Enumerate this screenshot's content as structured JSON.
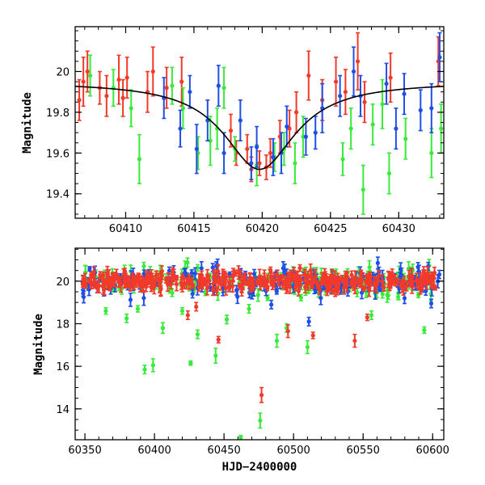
{
  "colors": {
    "red": "#f23a2a",
    "green": "#3aea3a",
    "blue": "#1f4fe6",
    "model": "#000000"
  },
  "chart_data": [
    {
      "type": "scatter",
      "title": "",
      "xlabel": "",
      "ylabel": "Magnitude",
      "xlim": [
        60406.3,
        60433.3
      ],
      "ylim": [
        20.22,
        19.28
      ],
      "inverted_y": true,
      "xticks": [
        60410,
        60415,
        60420,
        60425,
        60430
      ],
      "yticks": [
        19.4,
        19.6,
        19.8,
        20
      ],
      "ytick_labels": [
        "19.4",
        "19.6",
        "19.8",
        "20"
      ],
      "model_curve": {
        "type": "lorentzian-like peak",
        "baseline": 19.95,
        "peak_mag": 19.52,
        "peak_x": 60419.8,
        "half_width_days": 3.2
      },
      "series": [
        {
          "color": "red",
          "points": [
            [
              60406.6,
              19.86,
              0.1
            ],
            [
              60406.9,
              19.95,
              0.12
            ],
            [
              60407.2,
              20.0,
              0.1
            ],
            [
              60408.1,
              19.92,
              0.08
            ],
            [
              60408.6,
              19.88,
              0.1
            ],
            [
              60409.5,
              19.96,
              0.12
            ],
            [
              60409.8,
              19.87,
              0.09
            ],
            [
              60410.1,
              19.97,
              0.1
            ],
            [
              60411.6,
              19.9,
              0.1
            ],
            [
              60412.0,
              20.0,
              0.12
            ],
            [
              60413.0,
              19.92,
              0.1
            ],
            [
              60414.1,
              19.95,
              0.12
            ],
            [
              60417.7,
              19.71,
              0.08
            ],
            [
              60418.1,
              19.6,
              0.06
            ],
            [
              60418.9,
              19.62,
              0.07
            ],
            [
              60419.2,
              19.52,
              0.06
            ],
            [
              60419.8,
              19.55,
              0.06
            ],
            [
              60420.3,
              19.53,
              0.06
            ],
            [
              60420.6,
              19.6,
              0.07
            ],
            [
              60421.3,
              19.68,
              0.08
            ],
            [
              60422.0,
              19.72,
              0.09
            ],
            [
              60422.5,
              19.8,
              0.1
            ],
            [
              60423.4,
              19.98,
              0.12
            ],
            [
              60424.4,
              19.86,
              0.1
            ],
            [
              60425.4,
              19.95,
              0.12
            ],
            [
              60426.1,
              19.9,
              0.11
            ],
            [
              60427.0,
              20.05,
              0.14
            ],
            [
              60427.5,
              19.85,
              0.1
            ],
            [
              60429.4,
              19.97,
              0.12
            ],
            [
              60432.9,
              20.05,
              0.12
            ]
          ]
        },
        {
          "color": "green",
          "points": [
            [
              60407.4,
              19.98,
              0.1
            ],
            [
              60409.1,
              19.92,
              0.09
            ],
            [
              60410.4,
              19.82,
              0.09
            ],
            [
              60411.0,
              19.57,
              0.12
            ],
            [
              60413.4,
              19.93,
              0.09
            ],
            [
              60414.2,
              19.82,
              0.1
            ],
            [
              60415.3,
              19.6,
              0.08
            ],
            [
              60416.2,
              19.66,
              0.12
            ],
            [
              60416.7,
              19.72,
              0.1
            ],
            [
              60417.2,
              19.92,
              0.1
            ],
            [
              60418.0,
              19.62,
              0.06
            ],
            [
              60419.6,
              19.54,
              0.1
            ],
            [
              60420.9,
              19.58,
              0.07
            ],
            [
              60421.6,
              19.62,
              0.08
            ],
            [
              60422.4,
              19.55,
              0.1
            ],
            [
              60423.0,
              19.68,
              0.1
            ],
            [
              60425.9,
              19.57,
              0.08
            ],
            [
              60426.5,
              19.72,
              0.1
            ],
            [
              60427.4,
              19.42,
              0.12
            ],
            [
              60428.1,
              19.74,
              0.1
            ],
            [
              60428.8,
              19.84,
              0.12
            ],
            [
              60429.3,
              19.5,
              0.1
            ],
            [
              60430.5,
              19.67,
              0.1
            ],
            [
              60432.4,
              19.6,
              0.12
            ],
            [
              60433.1,
              19.72,
              0.12
            ]
          ]
        },
        {
          "color": "blue",
          "points": [
            [
              60412.8,
              19.87,
              0.1
            ],
            [
              60414.0,
              19.72,
              0.09
            ],
            [
              60414.7,
              19.9,
              0.08
            ],
            [
              60415.2,
              19.62,
              0.12
            ],
            [
              60416.0,
              19.76,
              0.1
            ],
            [
              60416.8,
              19.93,
              0.1
            ],
            [
              60417.2,
              19.6,
              0.1
            ],
            [
              60418.4,
              19.76,
              0.1
            ],
            [
              60419.2,
              19.55,
              0.08
            ],
            [
              60419.6,
              19.63,
              0.1
            ],
            [
              60420.8,
              19.58,
              0.09
            ],
            [
              60421.4,
              19.6,
              0.1
            ],
            [
              60421.8,
              19.73,
              0.1
            ],
            [
              60423.2,
              19.68,
              0.09
            ],
            [
              60423.9,
              19.7,
              0.08
            ],
            [
              60424.4,
              19.82,
              0.12
            ],
            [
              60425.7,
              19.88,
              0.1
            ],
            [
              60426.7,
              20.0,
              0.12
            ],
            [
              60427.2,
              19.88,
              0.1
            ],
            [
              60429.1,
              19.94,
              0.1
            ],
            [
              60429.8,
              19.72,
              0.1
            ],
            [
              60430.4,
              19.89,
              0.1
            ],
            [
              60431.6,
              19.81,
              0.1
            ],
            [
              60432.4,
              19.82,
              0.12
            ],
            [
              60433.0,
              20.07,
              0.12
            ]
          ]
        }
      ]
    },
    {
      "type": "scatter",
      "title": "",
      "xlabel": "HJD−2400000",
      "ylabel": "Magnitude",
      "xlim": [
        60343,
        60608
      ],
      "ylim": [
        21.55,
        12.55
      ],
      "inverted_y": true,
      "xticks": [
        60350,
        60400,
        60450,
        60500,
        60550,
        60600
      ],
      "yticks": [
        14,
        16,
        18,
        20
      ],
      "ytick_labels": [
        "14",
        "16",
        "18",
        "20"
      ],
      "outliers": [
        {
          "color": "green",
          "x": 60462,
          "y": 12.65,
          "err": 0.1
        },
        {
          "color": "green",
          "x": 60476,
          "y": 13.45,
          "err": 0.35
        },
        {
          "color": "red",
          "x": 60477,
          "y": 14.65,
          "err": 0.35
        },
        {
          "color": "green",
          "x": 60393,
          "y": 15.85,
          "err": 0.2
        },
        {
          "color": "green",
          "x": 60399,
          "y": 16.05,
          "err": 0.3
        },
        {
          "color": "green",
          "x": 60426,
          "y": 16.15,
          "err": 0.1
        },
        {
          "color": "green",
          "x": 60444,
          "y": 16.5,
          "err": 0.35
        },
        {
          "color": "red",
          "x": 60446,
          "y": 17.25,
          "err": 0.15
        },
        {
          "color": "green",
          "x": 60488,
          "y": 17.2,
          "err": 0.3
        },
        {
          "color": "green",
          "x": 60510,
          "y": 16.9,
          "err": 0.3
        },
        {
          "color": "red",
          "x": 60514,
          "y": 17.45,
          "err": 0.15
        },
        {
          "color": "red",
          "x": 60544,
          "y": 17.2,
          "err": 0.3
        },
        {
          "color": "green",
          "x": 60431,
          "y": 17.5,
          "err": 0.2
        },
        {
          "color": "green",
          "x": 60406,
          "y": 17.8,
          "err": 0.25
        },
        {
          "color": "green",
          "x": 60594,
          "y": 17.7,
          "err": 0.15
        },
        {
          "color": "green",
          "x": 60495,
          "y": 17.8,
          "err": 0.2
        },
        {
          "color": "red",
          "x": 60496,
          "y": 17.65,
          "err": 0.3
        },
        {
          "color": "green",
          "x": 60365,
          "y": 18.6,
          "err": 0.15
        },
        {
          "color": "green",
          "x": 60380,
          "y": 18.25,
          "err": 0.2
        },
        {
          "color": "green",
          "x": 60388,
          "y": 18.7,
          "err": 0.15
        },
        {
          "color": "green",
          "x": 60420,
          "y": 18.6,
          "err": 0.15
        },
        {
          "color": "red",
          "x": 60424,
          "y": 18.4,
          "err": 0.2
        },
        {
          "color": "red",
          "x": 60430,
          "y": 18.8,
          "err": 0.2
        },
        {
          "color": "green",
          "x": 60452,
          "y": 18.2,
          "err": 0.2
        },
        {
          "color": "blue",
          "x": 60511,
          "y": 18.1,
          "err": 0.2
        },
        {
          "color": "green",
          "x": 60556,
          "y": 18.4,
          "err": 0.2
        },
        {
          "color": "red",
          "x": 60553,
          "y": 18.3,
          "err": 0.15
        },
        {
          "color": "blue",
          "x": 60599,
          "y": 18.95,
          "err": 0.2
        },
        {
          "color": "green",
          "x": 60468,
          "y": 18.7,
          "err": 0.2
        },
        {
          "color": "blue",
          "x": 60484,
          "y": 18.9,
          "err": 0.2
        }
      ],
      "bulk": {
        "x_start": 60348,
        "x_end": 60605,
        "mean_mag": 20.0,
        "scatter_mag": 0.35,
        "colors": [
          "green",
          "blue",
          "red"
        ]
      }
    }
  ]
}
